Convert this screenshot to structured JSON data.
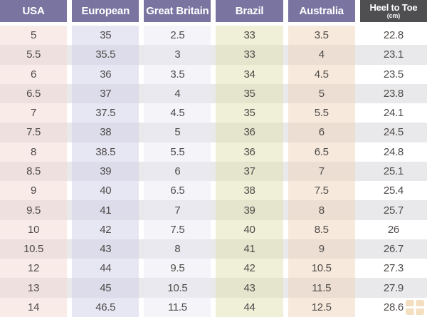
{
  "table": {
    "headers": [
      {
        "label": "USA"
      },
      {
        "label": "European"
      },
      {
        "label": "Great Britain"
      },
      {
        "label": "Brazil"
      },
      {
        "label": "Australia"
      },
      {
        "label": "Heel to Toe",
        "sublabel": "(cm)"
      }
    ]
  },
  "chart_data": {
    "type": "table",
    "columns": [
      "USA",
      "European",
      "Great Britain",
      "Brazil",
      "Australia",
      "Heel to Toe (cm)"
    ],
    "rows": [
      [
        "5",
        "35",
        "2.5",
        "33",
        "3.5",
        "22.8"
      ],
      [
        "5.5",
        "35.5",
        "3",
        "33",
        "4",
        "23.1"
      ],
      [
        "6",
        "36",
        "3.5",
        "34",
        "4.5",
        "23.5"
      ],
      [
        "6.5",
        "37",
        "4",
        "35",
        "5",
        "23.8"
      ],
      [
        "7",
        "37.5",
        "4.5",
        "35",
        "5.5",
        "24.1"
      ],
      [
        "7.5",
        "38",
        "5",
        "36",
        "6",
        "24.5"
      ],
      [
        "8",
        "38.5",
        "5.5",
        "36",
        "6.5",
        "24.8"
      ],
      [
        "8.5",
        "39",
        "6",
        "37",
        "7",
        "25.1"
      ],
      [
        "9",
        "40",
        "6.5",
        "38",
        "7.5",
        "25.4"
      ],
      [
        "9.5",
        "41",
        "7",
        "39",
        "8",
        "25.7"
      ],
      [
        "10",
        "42",
        "7.5",
        "40",
        "8.5",
        "26"
      ],
      [
        "10.5",
        "43",
        "8",
        "41",
        "9",
        "26.7"
      ],
      [
        "12",
        "44",
        "9.5",
        "42",
        "10.5",
        "27.3"
      ],
      [
        "13",
        "45",
        "10.5",
        "43",
        "11.5",
        "27.9"
      ],
      [
        "14",
        "46.5",
        "11.5",
        "44",
        "12.5",
        "28.6"
      ]
    ]
  },
  "colors": {
    "header_bg": "#7a74a1",
    "heel_header_bg": "#4f4f51",
    "header_text": "#ffffff",
    "cell_text": "#4f4b49",
    "stripe_row_bg": "#e9e9eb",
    "column_tints": {
      "usa": "#f9ebe8",
      "european": "#e7e7f4",
      "great_britain": "#f4f4f9",
      "brazil": "#f0f0d8",
      "australia": "#f7e9dc",
      "heel_to_toe": "#ffffff"
    }
  },
  "watermark": {
    "icon": "window-grid-icon",
    "color": "#df9a3f"
  }
}
